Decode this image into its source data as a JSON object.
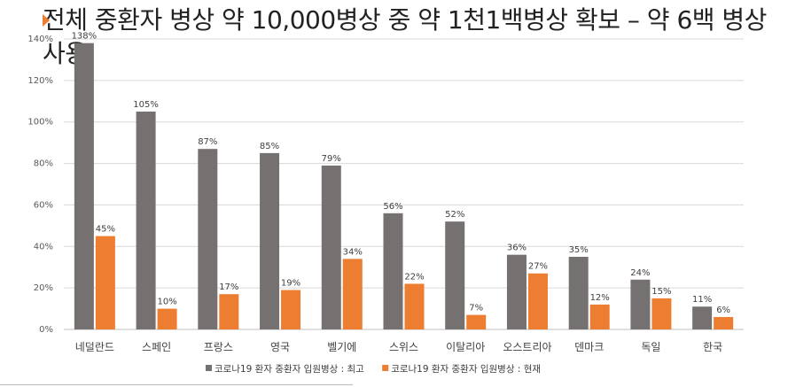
{
  "title": "전체 중환자 병상 약 10,000병상 중 약 1천1백병상 확보 – 약 6백 병상 사용",
  "colors": {
    "accent": "#ed7d31",
    "series_peak": "#767171",
    "series_current": "#ed7d31",
    "grid": "#d9d9d9"
  },
  "chart_data": {
    "type": "bar",
    "categories": [
      "네덜란드",
      "스페인",
      "프랑스",
      "영국",
      "벨기에",
      "스위스",
      "이탈리아",
      "오스트리아",
      "덴마크",
      "독일",
      "한국"
    ],
    "series": [
      {
        "name": "코로나19 환자 중환자 입원병상 : 최고",
        "values": [
          138,
          105,
          87,
          85,
          79,
          56,
          52,
          36,
          35,
          24,
          11
        ],
        "labels": [
          "138%",
          "105%",
          "87%",
          "85%",
          "79%",
          "56%",
          "52%",
          "36%",
          "35%",
          "24%",
          "11%"
        ]
      },
      {
        "name": "코로나19 환자 중환자 입원병상 : 현재",
        "values": [
          45,
          10,
          17,
          19,
          34,
          22,
          7,
          27,
          12,
          15,
          6
        ],
        "labels": [
          "45%",
          "10%",
          "17%",
          "19%",
          "34%",
          "22%",
          "7%",
          "27%",
          "12%",
          "15%",
          "6%"
        ]
      }
    ],
    "y_ticks": [
      "0%",
      "20%",
      "40%",
      "60%",
      "80%",
      "100%",
      "120%",
      "140%"
    ],
    "y_tick_values": [
      0,
      20,
      40,
      60,
      80,
      100,
      120,
      140
    ],
    "ylim": [
      0,
      140
    ],
    "grid": true,
    "legend": "bottom"
  }
}
